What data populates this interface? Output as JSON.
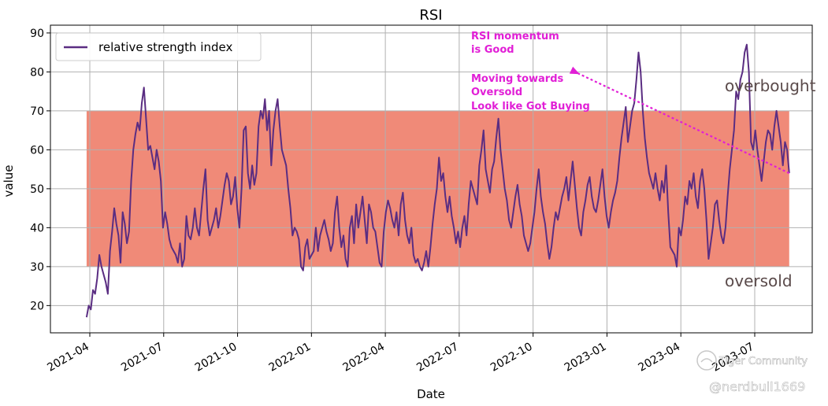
{
  "chart_data": {
    "type": "line",
    "title": "RSI",
    "xlabel": "Date",
    "ylabel": "value",
    "ylim": [
      13,
      92
    ],
    "yticks": [
      20,
      30,
      40,
      50,
      60,
      70,
      80,
      90
    ],
    "xticks": [
      "2021-04",
      "2021-07",
      "2021-10",
      "2022-01",
      "2022-04",
      "2022-07",
      "2022-10",
      "2023-01",
      "2023-04",
      "2023-07"
    ],
    "grid": true,
    "legend": {
      "location": "top-left",
      "entries": [
        "relative strength index"
      ]
    },
    "band": {
      "lower": 30,
      "upper": 70,
      "color": "#f08a78"
    },
    "series": [
      {
        "name": "relative strength index",
        "color": "#5a2d82",
        "values": [
          17,
          20,
          19,
          24,
          23,
          27,
          33,
          30,
          28,
          26,
          23,
          34,
          39,
          45,
          41,
          38,
          31,
          44,
          41,
          36,
          39,
          52,
          60,
          64,
          67,
          65,
          72,
          76,
          68,
          60,
          61,
          58,
          55,
          60,
          57,
          52,
          40,
          44,
          41,
          37,
          35,
          34,
          33,
          31,
          36,
          30,
          32,
          43,
          38,
          37,
          40,
          45,
          40,
          38,
          44,
          50,
          55,
          42,
          38,
          40,
          42,
          45,
          40,
          43,
          47,
          51,
          54,
          52,
          46,
          48,
          53,
          45,
          40,
          50,
          65,
          66,
          54,
          50,
          56,
          51,
          54,
          66,
          70,
          68,
          73,
          65,
          70,
          56,
          65,
          70,
          73,
          66,
          60,
          58,
          56,
          50,
          45,
          38,
          40,
          39,
          37,
          30,
          29,
          35,
          37,
          32,
          33,
          34,
          40,
          34,
          38,
          40,
          42,
          39,
          37,
          34,
          36,
          44,
          48,
          40,
          35,
          38,
          32,
          30,
          40,
          43,
          36,
          46,
          40,
          44,
          48,
          42,
          36,
          46,
          44,
          40,
          39,
          35,
          31,
          30,
          39,
          44,
          47,
          45,
          42,
          40,
          44,
          38,
          46,
          49,
          42,
          38,
          36,
          40,
          33,
          31,
          32,
          30,
          29,
          31,
          34,
          30,
          35,
          41,
          46,
          50,
          58,
          52,
          54,
          48,
          44,
          48,
          43,
          40,
          36,
          39,
          35,
          40,
          43,
          38,
          46,
          52,
          50,
          48,
          46,
          56,
          60,
          65,
          55,
          52,
          49,
          55,
          57,
          63,
          68,
          60,
          55,
          50,
          47,
          42,
          40,
          44,
          48,
          51,
          46,
          43,
          38,
          36,
          34,
          36,
          40,
          44,
          50,
          55,
          48,
          44,
          41,
          36,
          32,
          35,
          40,
          44,
          42,
          45,
          48,
          50,
          53,
          47,
          52,
          57,
          51,
          45,
          40,
          38,
          44,
          47,
          51,
          53,
          48,
          45,
          44,
          47,
          51,
          55,
          48,
          43,
          40,
          44,
          47,
          49,
          52,
          58,
          63,
          67,
          71,
          62,
          66,
          70,
          72,
          78,
          85,
          80,
          70,
          63,
          58,
          54,
          52,
          50,
          54,
          50,
          47,
          52,
          49,
          56,
          44,
          35,
          34,
          33,
          30,
          40,
          38,
          42,
          48,
          46,
          52,
          50,
          54,
          48,
          45,
          52,
          55,
          50,
          42,
          32,
          36,
          40,
          46,
          47,
          42,
          38,
          36,
          40,
          48,
          55,
          60,
          65,
          75,
          73,
          78,
          80,
          85,
          87,
          80,
          62,
          60,
          65,
          60,
          56,
          52,
          57,
          62,
          65,
          64,
          60,
          66,
          70,
          66,
          62,
          56,
          62,
          60,
          54
        ]
      }
    ],
    "annotations": {
      "zones": [
        "overbought",
        "oversold"
      ],
      "note_lines": [
        "RSI momentum",
        "is Good",
        "",
        "Moving towards",
        "Oversold",
        "Look like Got Buying"
      ],
      "arrow": {
        "from_x_frac": 1.0,
        "from_value": 54,
        "to_value": 80
      }
    }
  },
  "watermark": {
    "community": "Tiger Community",
    "handle": "@nerdbull1669"
  }
}
